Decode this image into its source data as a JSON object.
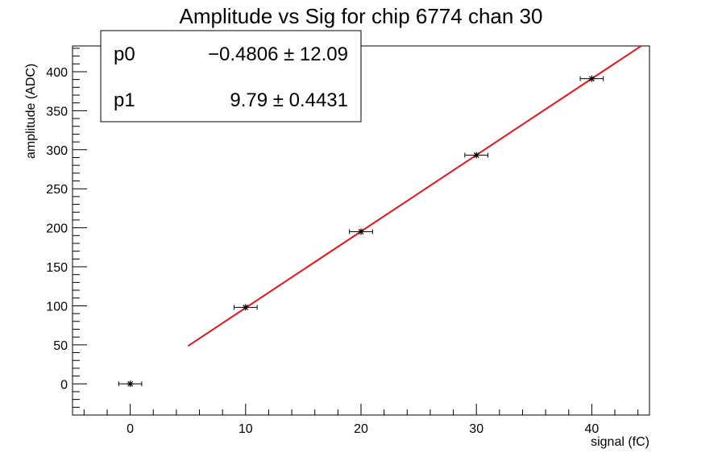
{
  "chart_data": {
    "type": "scatter",
    "title": "Amplitude vs Sig for chip 6774 chan 30",
    "xlabel": "signal (fC)",
    "ylabel": "amplitude (ADC)",
    "xlim": [
      -5,
      45
    ],
    "ylim": [
      -40,
      433
    ],
    "x_ticks": [
      0,
      10,
      20,
      30,
      40
    ],
    "y_ticks": [
      0,
      50,
      100,
      150,
      200,
      250,
      300,
      350,
      400
    ],
    "grid": false,
    "points": [
      {
        "x": 0,
        "y": 0,
        "xerr": 1,
        "yerr": 2
      },
      {
        "x": 10,
        "y": 98,
        "xerr": 1,
        "yerr": 2
      },
      {
        "x": 20,
        "y": 195,
        "xerr": 1,
        "yerr": 2
      },
      {
        "x": 30,
        "y": 293,
        "xerr": 1,
        "yerr": 2
      },
      {
        "x": 40,
        "y": 391,
        "xerr": 1,
        "yerr": 2
      }
    ],
    "fit": {
      "color": "#e8141c",
      "x_range": [
        5,
        44.3
      ],
      "p0": -0.4806,
      "p1": 9.79
    },
    "point_color": "#000000",
    "stats_box": {
      "rows": [
        {
          "name": "p0",
          "value": "−0.4806 ± 12.09"
        },
        {
          "name": "p1",
          "value": "9.79 ± 0.4431"
        }
      ]
    }
  }
}
